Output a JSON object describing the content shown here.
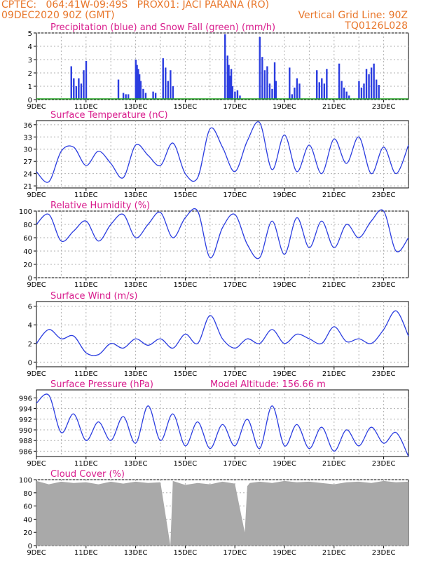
{
  "header": {
    "line1_left": "CPTEC:   064:41W-09:49S   PROX01: JACI PARANA (RO)",
    "line2_left": "09DEC2020 90Z (GMT)",
    "line2_right": "Vertical Grid Line: 90Z",
    "line3_right": "TQ0126L028"
  },
  "colors": {
    "header": "#e8762a",
    "title": "#d81b8c",
    "series": "#2b3de0",
    "snow": "#1fa01f",
    "cloud": "#a9a9a9",
    "grid": "#b0b0b0"
  },
  "x_tick_labels": [
    "9DEC",
    "11DEC",
    "13DEC",
    "15DEC",
    "17DEC",
    "19DEC",
    "21DEC",
    "23DEC"
  ],
  "x_range_days": [
    9,
    24
  ],
  "chart_data": [
    {
      "type": "bar",
      "title": "Precipitation (blue) and Snow Fall (green) (mm/h)",
      "ylim": [
        0,
        5
      ],
      "yticks": [
        0,
        1,
        2,
        3,
        4,
        5
      ],
      "series": [
        {
          "name": "Precipitation",
          "x": [
            10.4,
            10.5,
            10.6,
            10.7,
            10.8,
            10.9,
            11.0,
            12.3,
            12.5,
            12.6,
            12.7,
            13.0,
            13.05,
            13.1,
            13.15,
            13.2,
            13.3,
            13.4,
            13.7,
            13.8,
            14.1,
            14.2,
            14.3,
            14.4,
            14.5,
            16.6,
            16.7,
            16.75,
            16.8,
            16.85,
            16.9,
            17.0,
            17.1,
            17.2,
            18.0,
            18.1,
            18.2,
            18.3,
            18.4,
            18.5,
            18.6,
            18.65,
            19.2,
            19.3,
            19.4,
            19.5,
            19.6,
            20.3,
            20.4,
            20.5,
            20.6,
            20.7,
            21.2,
            21.3,
            21.4,
            21.5,
            21.6,
            22.0,
            22.1,
            22.2,
            22.3,
            22.4,
            22.5,
            22.6,
            22.7,
            22.8
          ],
          "values": [
            2.5,
            1.6,
            1.0,
            1.6,
            1.2,
            2.2,
            2.9,
            1.5,
            0.5,
            0.4,
            0.4,
            3.0,
            2.6,
            2.3,
            1.9,
            1.4,
            0.8,
            0.5,
            0.6,
            0.5,
            3.1,
            2.4,
            1.4,
            2.2,
            1.0,
            4.9,
            3.3,
            2.6,
            1.8,
            2.3,
            1.0,
            0.6,
            0.7,
            0.3,
            4.7,
            3.2,
            2.2,
            2.5,
            1.2,
            0.8,
            2.8,
            1.4,
            2.4,
            0.4,
            0.9,
            1.6,
            1.2,
            2.2,
            1.3,
            1.6,
            1.2,
            2.3,
            2.7,
            1.4,
            0.9,
            0.6,
            0.3,
            1.4,
            0.9,
            1.2,
            2.3,
            1.9,
            2.4,
            2.7,
            1.5,
            1.1
          ]
        },
        {
          "name": "Snow Fall",
          "x": [],
          "values": []
        }
      ]
    },
    {
      "type": "line",
      "title": "Surface Temperature (nC)",
      "ylim": [
        20.5,
        37
      ],
      "yticks": [
        21,
        24,
        27,
        30,
        33,
        36
      ],
      "x": [
        9.0,
        9.5,
        10.0,
        10.5,
        11.0,
        11.5,
        12.0,
        12.5,
        13.0,
        13.5,
        14.0,
        14.5,
        15.0,
        15.5,
        16.0,
        16.5,
        17.0,
        17.5,
        18.0,
        18.5,
        19.0,
        19.5,
        20.0,
        20.5,
        21.0,
        21.5,
        22.0,
        22.5,
        23.0,
        23.5,
        24.0
      ],
      "values": [
        24.5,
        22.0,
        29.5,
        30.5,
        26.0,
        29.5,
        26.5,
        23.0,
        31.0,
        28.5,
        26.0,
        31.5,
        24.0,
        23.0,
        35.0,
        30.5,
        24.5,
        32.0,
        36.5,
        25.0,
        33.5,
        24.5,
        31.0,
        24.0,
        32.5,
        26.5,
        33.0,
        24.0,
        30.5,
        24.0,
        31.0
      ]
    },
    {
      "type": "line",
      "title": "Relative Humidity (%)",
      "ylim": [
        0,
        100
      ],
      "yticks": [
        0,
        20,
        40,
        60,
        80,
        100
      ],
      "x": [
        9.0,
        9.5,
        10.0,
        10.5,
        11.0,
        11.5,
        12.0,
        12.5,
        13.0,
        13.5,
        14.0,
        14.5,
        15.0,
        15.5,
        16.0,
        16.5,
        17.0,
        17.5,
        18.0,
        18.5,
        19.0,
        19.5,
        20.0,
        20.5,
        21.0,
        21.5,
        22.0,
        22.5,
        23.0,
        23.5,
        24.0
      ],
      "values": [
        80,
        95,
        55,
        70,
        85,
        55,
        80,
        95,
        60,
        80,
        98,
        60,
        90,
        100,
        30,
        75,
        95,
        50,
        30,
        85,
        35,
        90,
        45,
        85,
        45,
        80,
        60,
        85,
        100,
        40,
        60
      ]
    },
    {
      "type": "line",
      "title": "Surface Wind (m/s)",
      "ylim": [
        -0.5,
        6.5
      ],
      "yticks": [
        0,
        2,
        4,
        6
      ],
      "x": [
        9.0,
        9.5,
        10.0,
        10.5,
        11.0,
        11.5,
        12.0,
        12.5,
        13.0,
        13.5,
        14.0,
        14.5,
        15.0,
        15.5,
        16.0,
        16.5,
        17.0,
        17.5,
        18.0,
        18.5,
        19.0,
        19.5,
        20.0,
        20.5,
        21.0,
        21.5,
        22.0,
        22.5,
        23.0,
        23.5,
        24.0
      ],
      "values": [
        2.0,
        3.5,
        2.5,
        2.8,
        1.0,
        0.8,
        2.0,
        1.5,
        2.5,
        1.8,
        2.5,
        1.5,
        3.0,
        2.0,
        5.0,
        2.5,
        1.5,
        2.5,
        2.0,
        3.5,
        2.0,
        3.0,
        2.5,
        2.0,
        3.8,
        2.2,
        2.5,
        2.0,
        3.5,
        5.5,
        2.8
      ]
    },
    {
      "type": "line",
      "title": "Surface Pressure (hPa)",
      "subtitle": "Model Altitude: 156.66 m",
      "ylim": [
        985,
        997.5
      ],
      "yticks": [
        986,
        988,
        990,
        992,
        994,
        996
      ],
      "x": [
        9.0,
        9.5,
        10.0,
        10.5,
        11.0,
        11.5,
        12.0,
        12.5,
        13.0,
        13.5,
        14.0,
        14.5,
        15.0,
        15.5,
        16.0,
        16.5,
        17.0,
        17.5,
        18.0,
        18.5,
        19.0,
        19.5,
        20.0,
        20.5,
        21.0,
        21.5,
        22.0,
        22.5,
        23.0,
        23.5,
        24.0
      ],
      "values": [
        995.0,
        996.5,
        989.5,
        993.0,
        988.0,
        991.5,
        988.0,
        992.5,
        987.5,
        994.5,
        988.0,
        993.0,
        987.0,
        991.5,
        986.5,
        991.0,
        987.0,
        992.0,
        986.5,
        994.5,
        987.0,
        991.0,
        986.5,
        990.5,
        986.0,
        990.0,
        987.0,
        990.5,
        987.5,
        989.5,
        985.0
      ]
    },
    {
      "type": "area",
      "title": "Cloud Cover (%)",
      "ylim": [
        0,
        100
      ],
      "yticks": [
        0,
        20,
        40,
        60,
        80,
        100
      ],
      "x": [
        9.0,
        9.5,
        10.0,
        10.5,
        11.0,
        11.5,
        12.0,
        12.5,
        13.0,
        13.5,
        14.0,
        14.4,
        14.5,
        15.0,
        15.5,
        16.0,
        16.5,
        17.0,
        17.4,
        17.5,
        17.6,
        18.0,
        18.5,
        19.0,
        19.5,
        20.0,
        20.5,
        21.0,
        21.5,
        22.0,
        22.5,
        23.0,
        23.5,
        24.0
      ],
      "values": [
        98,
        93,
        97,
        95,
        96,
        93,
        97,
        94,
        97,
        95,
        96,
        0,
        98,
        92,
        95,
        93,
        97,
        94,
        20,
        90,
        95,
        97,
        95,
        98,
        96,
        97,
        95,
        93,
        96,
        97,
        95,
        98,
        96,
        97
      ]
    }
  ]
}
